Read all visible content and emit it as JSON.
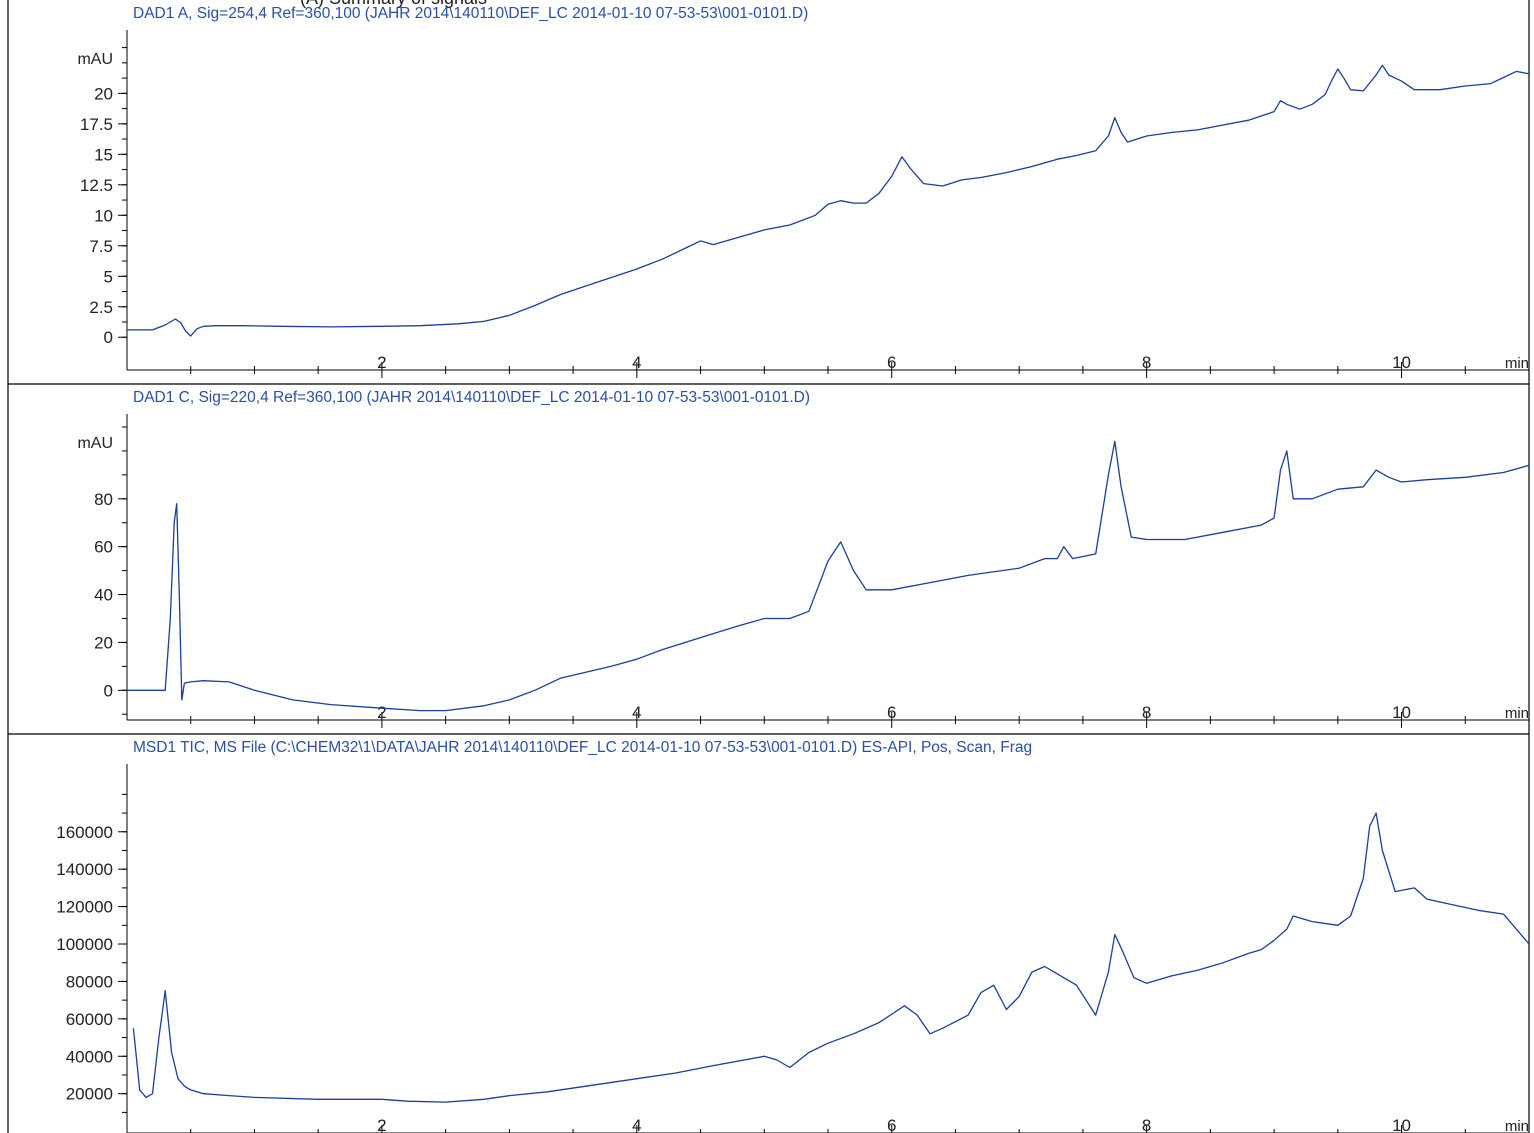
{
  "header": {
    "cut_text": "(A) Summary of signals"
  },
  "chart_data": [
    {
      "type": "line",
      "title": "DAD1 A, Sig=254,4 Ref=360,100 (JAHR 2014\\140110\\DEF_LC 2014-01-10 07-53-53\\001-0101.D)",
      "ylabel": "mAU",
      "xlabel": "min",
      "xlim": [
        0,
        11.0
      ],
      "ylim": [
        -0.8,
        23.8
      ],
      "x_ticks": [
        2,
        4,
        6,
        8,
        10
      ],
      "x_tick_labels": [
        "2",
        "4",
        "6",
        "8",
        "10"
      ],
      "y_ticks": [
        0,
        2.5,
        5,
        7.5,
        10,
        12.5,
        15,
        17.5,
        20
      ],
      "y_tick_labels": [
        "0",
        "2.5",
        "5",
        "7.5",
        "10",
        "12.5",
        "15",
        "17.5",
        "20"
      ],
      "grid": false,
      "series": [
        {
          "color": "#1a3e9a",
          "x": [
            0,
            0.2,
            0.3,
            0.38,
            0.42,
            0.46,
            0.5,
            0.55,
            0.6,
            0.7,
            0.9,
            1.2,
            1.6,
            2.0,
            2.3,
            2.6,
            2.8,
            3.0,
            3.2,
            3.4,
            3.6,
            3.8,
            4.0,
            4.2,
            4.4,
            4.5,
            4.6,
            4.8,
            5.0,
            5.2,
            5.4,
            5.5,
            5.6,
            5.7,
            5.8,
            5.9,
            6.0,
            6.08,
            6.15,
            6.25,
            6.4,
            6.55,
            6.7,
            6.9,
            7.1,
            7.3,
            7.45,
            7.6,
            7.7,
            7.75,
            7.8,
            7.85,
            8.0,
            8.2,
            8.4,
            8.6,
            8.8,
            9.0,
            9.05,
            9.1,
            9.2,
            9.3,
            9.4,
            9.45,
            9.5,
            9.55,
            9.6,
            9.7,
            9.8,
            9.85,
            9.9,
            10.0,
            10.1,
            10.3,
            10.5,
            10.7,
            10.8,
            10.9,
            11.0
          ],
          "y": [
            0.6,
            0.6,
            1.0,
            1.5,
            1.2,
            0.5,
            0.1,
            0.7,
            0.9,
            0.95,
            0.95,
            0.9,
            0.85,
            0.9,
            0.95,
            1.1,
            1.3,
            1.8,
            2.6,
            3.5,
            4.2,
            4.9,
            5.6,
            6.4,
            7.4,
            7.9,
            7.6,
            8.2,
            8.8,
            9.2,
            10.0,
            10.9,
            11.2,
            11.0,
            11.0,
            11.8,
            13.2,
            14.8,
            13.8,
            12.6,
            12.4,
            12.9,
            13.1,
            13.5,
            14.0,
            14.6,
            14.9,
            15.3,
            16.5,
            18.0,
            16.8,
            16.0,
            16.5,
            16.8,
            17.0,
            17.4,
            17.8,
            18.5,
            19.4,
            19.1,
            18.7,
            19.1,
            19.9,
            21.0,
            22.0,
            21.2,
            20.3,
            20.2,
            21.5,
            22.3,
            21.5,
            21.0,
            20.3,
            20.3,
            20.6,
            20.8,
            21.3,
            21.8,
            21.6
          ]
        }
      ]
    },
    {
      "type": "line",
      "title": "DAD1 C, Sig=220,4 Ref=360,100 (JAHR 2014\\140110\\DEF_LC 2014-01-10 07-53-53\\001-0101.D)",
      "ylabel": "mAU",
      "xlabel": "min",
      "xlim": [
        0,
        11.0
      ],
      "ylim": [
        -12,
        110
      ],
      "x_ticks": [
        2,
        4,
        6,
        8,
        10
      ],
      "x_tick_labels": [
        "2",
        "4",
        "6",
        "8",
        "10"
      ],
      "y_ticks": [
        0,
        20,
        40,
        60,
        80
      ],
      "y_tick_labels": [
        "0",
        "20",
        "40",
        "60",
        "80"
      ],
      "grid": false,
      "series": [
        {
          "color": "#1a3e9a",
          "x": [
            0,
            0.2,
            0.3,
            0.34,
            0.37,
            0.39,
            0.41,
            0.43,
            0.45,
            0.5,
            0.6,
            0.8,
            1.0,
            1.3,
            1.6,
            2.0,
            2.3,
            2.5,
            2.8,
            3.0,
            3.2,
            3.4,
            3.6,
            3.8,
            4.0,
            4.2,
            4.5,
            4.8,
            5.0,
            5.2,
            5.35,
            5.5,
            5.6,
            5.7,
            5.8,
            6.0,
            6.3,
            6.6,
            7.0,
            7.2,
            7.3,
            7.35,
            7.42,
            7.6,
            7.7,
            7.75,
            7.8,
            7.88,
            8.0,
            8.3,
            8.6,
            8.9,
            9.0,
            9.05,
            9.1,
            9.15,
            9.3,
            9.5,
            9.7,
            9.8,
            9.9,
            10.0,
            10.2,
            10.5,
            10.8,
            11.0
          ],
          "y": [
            0,
            0,
            0,
            30,
            70,
            78,
            40,
            -4,
            3,
            3.5,
            4,
            3.5,
            0,
            -4,
            -6,
            -7.5,
            -8.5,
            -8.5,
            -6.5,
            -4,
            0,
            5,
            7.5,
            10,
            13,
            17,
            22,
            27,
            30,
            30,
            33,
            54,
            62,
            50,
            42,
            42,
            45,
            48,
            51,
            55,
            55,
            60,
            55,
            57,
            90,
            104,
            85,
            64,
            63,
            63,
            66,
            69,
            72,
            92,
            100,
            80,
            80,
            84,
            85,
            92,
            89,
            87,
            88,
            89,
            91,
            94
          ]
        }
      ]
    },
    {
      "type": "line",
      "title": "MSD1 TIC, MS File (C:\\CHEM32\\1\\DATA\\JAHR 2014\\140110\\DEF_LC 2014-01-10 07-53-53\\001-0101.D)    ES-API, Pos, Scan, Frag",
      "ylabel": "",
      "xlabel": "min",
      "xlim": [
        0,
        11.0
      ],
      "ylim": [
        7000,
        185000
      ],
      "x_ticks": [
        2,
        4,
        6,
        8,
        10
      ],
      "x_tick_labels": [
        "2",
        "4",
        "6",
        "8",
        "10"
      ],
      "y_ticks": [
        20000,
        40000,
        60000,
        80000,
        100000,
        120000,
        140000,
        160000
      ],
      "y_tick_labels": [
        "20000",
        "40000",
        "60000",
        "80000",
        "100000",
        "120000",
        "140000",
        "160000"
      ],
      "grid": false,
      "series": [
        {
          "color": "#1a3e9a",
          "x": [
            0.05,
            0.1,
            0.15,
            0.2,
            0.25,
            0.3,
            0.35,
            0.4,
            0.45,
            0.5,
            0.6,
            0.8,
            1.0,
            1.5,
            2.0,
            2.2,
            2.5,
            2.8,
            3.0,
            3.3,
            3.6,
            4.0,
            4.3,
            4.6,
            5.0,
            5.1,
            5.2,
            5.35,
            5.5,
            5.7,
            5.9,
            6.1,
            6.2,
            6.3,
            6.4,
            6.6,
            6.7,
            6.8,
            6.9,
            7.0,
            7.1,
            7.2,
            7.3,
            7.45,
            7.6,
            7.7,
            7.75,
            7.8,
            7.9,
            8.0,
            8.2,
            8.4,
            8.6,
            8.8,
            8.9,
            9.0,
            9.1,
            9.15,
            9.3,
            9.5,
            9.6,
            9.7,
            9.75,
            9.8,
            9.85,
            9.95,
            10.1,
            10.2,
            10.4,
            10.6,
            10.8,
            11.0
          ],
          "y": [
            55000,
            22000,
            18000,
            20000,
            50000,
            75000,
            42000,
            28000,
            24000,
            22000,
            20000,
            19000,
            18000,
            17000,
            17000,
            16000,
            15500,
            17000,
            19000,
            21000,
            24000,
            28000,
            31000,
            35000,
            40000,
            38000,
            34000,
            42000,
            47000,
            52000,
            58000,
            67000,
            62000,
            52000,
            55000,
            62000,
            74000,
            78000,
            65000,
            72000,
            85000,
            88000,
            84000,
            78000,
            62000,
            85000,
            105000,
            98000,
            82000,
            79000,
            83000,
            86000,
            90000,
            95000,
            97000,
            102000,
            108000,
            115000,
            112000,
            110000,
            115000,
            135000,
            163000,
            170000,
            150000,
            128000,
            130000,
            124000,
            121000,
            118000,
            116000,
            100000
          ]
        }
      ]
    }
  ]
}
